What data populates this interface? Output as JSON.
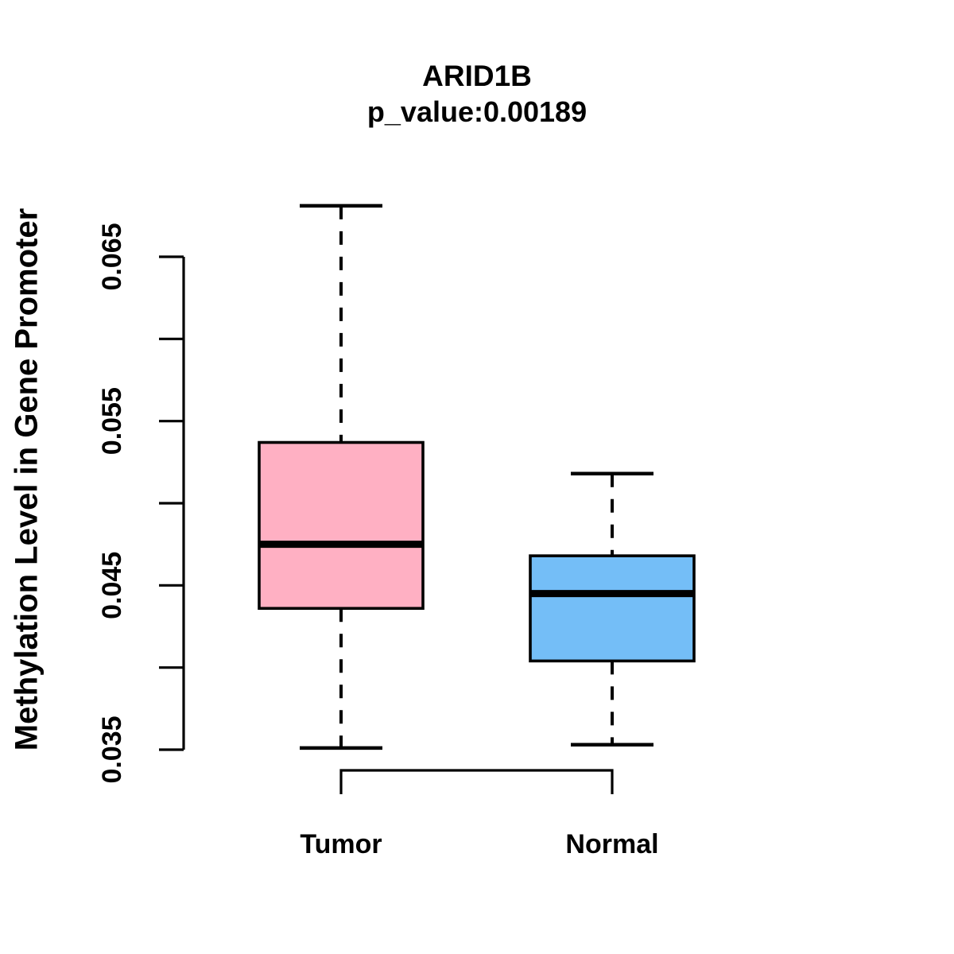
{
  "chart_data": {
    "type": "box",
    "title": "ARID1B",
    "subtitle": "p_value:0.00189",
    "ylabel": "Methylation Level in Gene Promoter",
    "xlabel": "",
    "categories": [
      "Tumor",
      "Normal"
    ],
    "series": [
      {
        "name": "Tumor",
        "fill_color": "#FFB0C3",
        "min": 0.0351,
        "q1": 0.0436,
        "median": 0.0475,
        "q3": 0.0537,
        "max": 0.0681
      },
      {
        "name": "Normal",
        "fill_color": "#74BEF7",
        "min": 0.0353,
        "q1": 0.0404,
        "median": 0.0445,
        "q3": 0.0468,
        "max": 0.0518
      }
    ],
    "y_axis": {
      "min": 0.035,
      "max": 0.065,
      "ticks": [
        {
          "value": 0.035,
          "label": "0.035"
        },
        {
          "value": 0.04,
          "label": ""
        },
        {
          "value": 0.045,
          "label": "0.045"
        },
        {
          "value": 0.05,
          "label": ""
        },
        {
          "value": 0.055,
          "label": "0.055"
        },
        {
          "value": 0.06,
          "label": ""
        },
        {
          "value": 0.065,
          "label": "0.065"
        }
      ]
    },
    "style": {
      "stroke_color": "#000000",
      "background_color": "#FFFFFF",
      "whiskers_dashed": true
    },
    "legend": "none",
    "grid": "off"
  }
}
